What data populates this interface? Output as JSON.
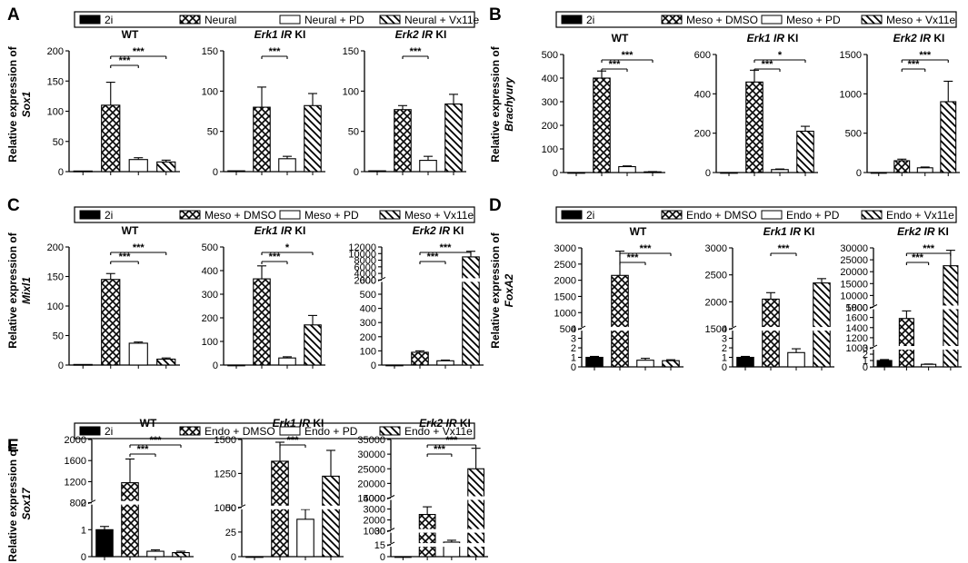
{
  "figure": {
    "colors": {
      "ink": "#000000",
      "bg": "#ffffff"
    }
  },
  "chart_data": [
    {
      "type": "bar",
      "panel_id": "panel-a",
      "letter": "A",
      "ylabel_prefix": "Relative expression of",
      "gene": "Sox1",
      "legend": [
        {
          "name": "2i",
          "pattern": "solid"
        },
        {
          "name": "Neural",
          "pattern": "cross"
        },
        {
          "name": "Neural + PD",
          "pattern": "empty"
        },
        {
          "name": "Neural + Vx11e",
          "pattern": "diag"
        }
      ],
      "subplots": [
        {
          "title_main": "WT",
          "title_suffix": "",
          "ylim": [
            0,
            200
          ],
          "ticks": [
            0,
            50,
            100,
            150,
            200
          ],
          "values": [
            1,
            110,
            20,
            16
          ],
          "errors": [
            0,
            38,
            3,
            3
          ],
          "sig": [
            {
              "from": 1,
              "to": 2,
              "label": "***"
            },
            {
              "from": 1,
              "to": 3,
              "label": "***"
            }
          ]
        },
        {
          "title_main": "Erk1 IR",
          "title_suffix": " KI",
          "ylim": [
            0,
            150
          ],
          "ticks": [
            0,
            50,
            100,
            150
          ],
          "values": [
            1,
            80,
            16,
            82
          ],
          "errors": [
            0,
            25,
            3,
            15
          ],
          "sig": [
            {
              "from": 1,
              "to": 2,
              "label": "***"
            }
          ]
        },
        {
          "title_main": "Erk2 IR",
          "title_suffix": " KI",
          "ylim": [
            0,
            150
          ],
          "ticks": [
            0,
            50,
            100,
            150
          ],
          "values": [
            1,
            77,
            14,
            84
          ],
          "errors": [
            0,
            5,
            5,
            12
          ],
          "sig": [
            {
              "from": 1,
              "to": 2,
              "label": "***"
            }
          ]
        }
      ]
    },
    {
      "type": "bar",
      "panel_id": "panel-b",
      "letter": "B",
      "ylabel_prefix": "Relative expression of",
      "gene": "Brachyury",
      "legend": [
        {
          "name": "2i",
          "pattern": "solid"
        },
        {
          "name": "Meso + DMSO",
          "pattern": "cross"
        },
        {
          "name": "Meso + PD",
          "pattern": "empty"
        },
        {
          "name": "Meso + Vx11e",
          "pattern": "diag"
        }
      ],
      "subplots": [
        {
          "title_main": "WT",
          "title_suffix": "",
          "ylim": [
            0,
            500
          ],
          "ticks": [
            0,
            100,
            200,
            300,
            400,
            500
          ],
          "values": [
            0,
            400,
            25,
            3
          ],
          "errors": [
            0,
            30,
            3,
            1
          ],
          "sig": [
            {
              "from": 1,
              "to": 2,
              "label": "***"
            },
            {
              "from": 1,
              "to": 3,
              "label": "***"
            }
          ]
        },
        {
          "title_main": "Erk1 IR",
          "title_suffix": " KI",
          "ylim": [
            0,
            600
          ],
          "ticks": [
            0,
            200,
            400,
            600
          ],
          "values": [
            0,
            460,
            15,
            210
          ],
          "errors": [
            0,
            60,
            3,
            25
          ],
          "sig": [
            {
              "from": 1,
              "to": 2,
              "label": "***"
            },
            {
              "from": 1,
              "to": 3,
              "label": "*"
            }
          ]
        },
        {
          "title_main": "Erk2 IR",
          "title_suffix": " KI",
          "ylim": [
            0,
            1500
          ],
          "ticks": [
            0,
            500,
            1000,
            1500
          ],
          "values": [
            0,
            150,
            60,
            900
          ],
          "errors": [
            0,
            20,
            10,
            260
          ],
          "sig": [
            {
              "from": 1,
              "to": 2,
              "label": "***"
            },
            {
              "from": 1,
              "to": 3,
              "label": "***"
            }
          ]
        }
      ]
    },
    {
      "type": "bar",
      "panel_id": "panel-c",
      "letter": "C",
      "ylabel_prefix": "Relative expression of",
      "gene": "Mixl1",
      "legend": [
        {
          "name": "2i",
          "pattern": "solid"
        },
        {
          "name": "Meso + DMSO",
          "pattern": "cross"
        },
        {
          "name": "Meso + PD",
          "pattern": "empty"
        },
        {
          "name": "Meso + Vx11e",
          "pattern": "diag"
        }
      ],
      "subplots": [
        {
          "title_main": "WT",
          "title_suffix": "",
          "ylim": [
            0,
            200
          ],
          "ticks": [
            0,
            50,
            100,
            150,
            200
          ],
          "values": [
            1,
            145,
            37,
            10
          ],
          "errors": [
            0,
            10,
            2,
            2
          ],
          "sig": [
            {
              "from": 1,
              "to": 2,
              "label": "***"
            },
            {
              "from": 1,
              "to": 3,
              "label": "***"
            }
          ]
        },
        {
          "title_main": "Erk1 IR",
          "title_suffix": " KI",
          "ylim": [
            0,
            500
          ],
          "ticks": [
            0,
            100,
            200,
            300,
            400,
            500
          ],
          "values": [
            0,
            365,
            30,
            170
          ],
          "errors": [
            0,
            55,
            5,
            40
          ],
          "sig": [
            {
              "from": 1,
              "to": 2,
              "label": "***"
            },
            {
              "from": 1,
              "to": 3,
              "label": "*"
            }
          ]
        },
        {
          "title_main": "Erk2 IR",
          "title_suffix": " KI",
          "segments": [
            {
              "range": [
                0,
                600
              ],
              "frac": 0.72
            },
            {
              "range": [
                2000,
                12000
              ],
              "frac": 0.28
            }
          ],
          "ticks": [
            0,
            100,
            200,
            300,
            400,
            500,
            600,
            2000,
            4000,
            6000,
            8000,
            10000,
            12000
          ],
          "values": [
            0,
            90,
            30,
            9000
          ],
          "errors": [
            0,
            10,
            5,
            1700
          ],
          "sig": [
            {
              "from": 1,
              "to": 2,
              "label": "***"
            },
            {
              "from": 1,
              "to": 3,
              "label": "***"
            }
          ]
        }
      ]
    },
    {
      "type": "bar",
      "panel_id": "panel-d",
      "letter": "D",
      "ylabel_prefix": "Relative expression of",
      "gene": "FoxA2",
      "legend": [
        {
          "name": "2i",
          "pattern": "solid"
        },
        {
          "name": "Endo + DMSO",
          "pattern": "cross"
        },
        {
          "name": "Endo + PD",
          "pattern": "empty"
        },
        {
          "name": "Endo + Vx11e",
          "pattern": "diag"
        }
      ],
      "subplots": [
        {
          "title_main": "WT",
          "title_suffix": "",
          "segments": [
            {
              "range": [
                0,
                4
              ],
              "frac": 0.32
            },
            {
              "range": [
                500,
                3000
              ],
              "frac": 0.68
            }
          ],
          "ticks": [
            0,
            1,
            2,
            3,
            4,
            500,
            1000,
            1500,
            2000,
            2500,
            3000
          ],
          "values": [
            1,
            2150,
            0.7,
            0.65
          ],
          "errors": [
            0.1,
            750,
            0.2,
            0.1
          ],
          "sig": [
            {
              "from": 1,
              "to": 2,
              "label": "***"
            },
            {
              "from": 1,
              "to": 3,
              "label": "***"
            }
          ]
        },
        {
          "title_main": "Erk1 IR",
          "title_suffix": " KI",
          "segments": [
            {
              "range": [
                0,
                4
              ],
              "frac": 0.32
            },
            {
              "range": [
                1500,
                3000
              ],
              "frac": 0.68
            }
          ],
          "ticks": [
            0,
            1,
            2,
            3,
            4,
            1500,
            2000,
            2500,
            3000
          ],
          "values": [
            1,
            2050,
            1.5,
            2350
          ],
          "errors": [
            0.1,
            120,
            0.4,
            80
          ],
          "sig": [
            {
              "from": 1,
              "to": 2,
              "label": "***"
            }
          ]
        },
        {
          "title_main": "Erk2 IR",
          "title_suffix": " KI",
          "segments": [
            {
              "range": [
                0,
                3
              ],
              "frac": 0.16
            },
            {
              "range": [
                1000,
                1800
              ],
              "frac": 0.34
            },
            {
              "range": [
                5000,
                30000
              ],
              "frac": 0.5
            }
          ],
          "ticks": [
            0,
            1,
            2,
            3,
            1000,
            1200,
            1400,
            1600,
            1800,
            5000,
            10000,
            15000,
            20000,
            25000,
            30000
          ],
          "values": [
            1,
            1580,
            0.4,
            22500
          ],
          "errors": [
            0.15,
            150,
            0.05,
            6500
          ],
          "sig": [
            {
              "from": 1,
              "to": 2,
              "label": "***"
            },
            {
              "from": 1,
              "to": 3,
              "label": "***"
            }
          ]
        }
      ]
    },
    {
      "type": "bar",
      "panel_id": "panel-e",
      "letter": "E",
      "ylabel_prefix": "Relative expression of",
      "gene": "Sox17",
      "legend": [
        {
          "name": "2i",
          "pattern": "solid"
        },
        {
          "name": "Endo + DMSO",
          "pattern": "cross"
        },
        {
          "name": "Endo + PD",
          "pattern": "empty"
        },
        {
          "name": "Endo + Vx11e",
          "pattern": "diag"
        }
      ],
      "subplots": [
        {
          "title_main": "WT",
          "title_suffix": "",
          "segments": [
            {
              "range": [
                0,
                2
              ],
              "frac": 0.46
            },
            {
              "range": [
                800,
                2000
              ],
              "frac": 0.54
            }
          ],
          "ticks": [
            0,
            1,
            2,
            800,
            1200,
            1600,
            2000
          ],
          "values": [
            1,
            1180,
            0.2,
            0.15
          ],
          "errors": [
            0.12,
            450,
            0.05,
            0.05
          ],
          "sig": [
            {
              "from": 1,
              "to": 2,
              "label": "***"
            },
            {
              "from": 1,
              "to": 3,
              "label": "***"
            }
          ]
        },
        {
          "title_main": "Erk1 IR",
          "title_suffix": " KI",
          "segments": [
            {
              "range": [
                0,
                50
              ],
              "frac": 0.42
            },
            {
              "range": [
                1000,
                1500
              ],
              "frac": 0.58
            }
          ],
          "ticks": [
            0,
            25,
            50,
            1000,
            1250,
            1500
          ],
          "values": [
            0,
            1340,
            38,
            1230
          ],
          "errors": [
            0,
            140,
            10,
            190
          ],
          "sig": [
            {
              "from": 1,
              "to": 2,
              "label": "***"
            }
          ]
        },
        {
          "title_main": "Erk2 IR",
          "title_suffix": " KI",
          "segments": [
            {
              "range": [
                0,
                15
              ],
              "frac": 0.1
            },
            {
              "range": [
                15,
                30
              ],
              "frac": 0.12
            },
            {
              "range": [
                1000,
                4000
              ],
              "frac": 0.28
            },
            {
              "range": [
                15000,
                35000
              ],
              "frac": 0.5
            }
          ],
          "ticks": [
            0,
            15,
            30,
            1000,
            2000,
            3000,
            4000,
            15000,
            20000,
            25000,
            30000,
            35000
          ],
          "values": [
            0,
            2500,
            18,
            25000
          ],
          "errors": [
            0,
            700,
            2,
            7000
          ],
          "sig": [
            {
              "from": 1,
              "to": 2,
              "label": "***"
            },
            {
              "from": 1,
              "to": 3,
              "label": "***"
            }
          ]
        }
      ]
    }
  ]
}
